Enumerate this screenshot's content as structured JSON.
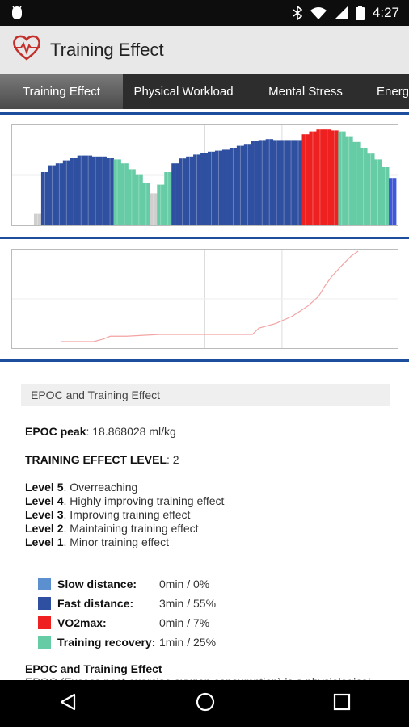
{
  "status": {
    "time": "4:27"
  },
  "app": {
    "title": "Training Effect"
  },
  "tabs": [
    {
      "label": "Training Effect"
    },
    {
      "label": "Physical Workload"
    },
    {
      "label": "Mental Stress"
    },
    {
      "label": "Energy"
    }
  ],
  "section": {
    "header": "EPOC and Training Effect"
  },
  "details": {
    "epoc_label": "EPOC peak",
    "epoc_value": ": 18.868028 ml/kg",
    "te_label": "TRAINING EFFECT LEVEL",
    "te_value": ": 2",
    "levels": [
      {
        "label": "Level 5",
        "text": ". Overreaching"
      },
      {
        "label": "Level 4",
        "text": ". Highly improving training effect"
      },
      {
        "label": "Level 3",
        "text": ". Improving training effect"
      },
      {
        "label": "Level 2",
        "text": ". Maintaining training effect"
      },
      {
        "label": "Level 1",
        "text": ". Minor training effect"
      }
    ],
    "legend": [
      {
        "label": "Slow distance:",
        "value": "0min / 0%",
        "color": "#5b8fd0"
      },
      {
        "label": "Fast distance:",
        "value": "3min / 55%",
        "color": "#2f4fa0"
      },
      {
        "label": "VO2max:",
        "value": "0min / 7%",
        "color": "#ee2020"
      },
      {
        "label": "Training recovery:",
        "value": "1min / 25%",
        "color": "#66cca6"
      }
    ],
    "footer_title": "EPOC and Training Effect",
    "footer_text": "EPOC (Excess post-exercise oxygen consumption) is a physiological"
  },
  "chart_data": [
    {
      "type": "bar",
      "x": [
        0,
        2,
        4,
        6,
        8,
        10,
        12,
        14,
        16,
        18,
        20,
        22,
        24,
        26,
        28,
        30,
        32,
        34,
        36,
        38,
        40,
        42,
        44,
        46,
        48,
        50,
        52,
        54,
        56,
        58,
        60,
        62,
        64,
        66,
        68,
        70,
        72,
        74,
        76,
        78,
        80,
        82,
        84,
        86,
        88,
        90,
        92,
        94,
        96,
        98,
        100
      ],
      "values": [
        0,
        12,
        55,
        62,
        64,
        67,
        70,
        72,
        72,
        71,
        71,
        70,
        68,
        64,
        58,
        52,
        44,
        33,
        42,
        55,
        64,
        69,
        71,
        73,
        75,
        76,
        77,
        78,
        80,
        82,
        84,
        87,
        88,
        89,
        88,
        88,
        88,
        88,
        94,
        97,
        99,
        99,
        98,
        97,
        92,
        86,
        80,
        74,
        68,
        60,
        49
      ],
      "zones": [
        "gray",
        "gray",
        "fast",
        "fast",
        "fast",
        "fast",
        "fast",
        "fast",
        "fast",
        "fast",
        "fast",
        "fast",
        "recovery",
        "recovery",
        "recovery",
        "recovery",
        "recovery",
        "gray",
        "recovery",
        "recovery",
        "fast",
        "fast",
        "fast",
        "fast",
        "fast",
        "fast",
        "fast",
        "fast",
        "fast",
        "fast",
        "fast",
        "fast",
        "fast",
        "fast",
        "fast",
        "fast",
        "fast",
        "fast",
        "vo2max",
        "vo2max",
        "vo2max",
        "vo2max",
        "vo2max",
        "recovery",
        "recovery",
        "recovery",
        "recovery",
        "recovery",
        "recovery",
        "recovery",
        "slow"
      ],
      "ylim": [
        0,
        100
      ],
      "grid": true
    },
    {
      "type": "line",
      "x": [
        0,
        5,
        10,
        13,
        15,
        20,
        25,
        30,
        40,
        50,
        55,
        58,
        60,
        63,
        65,
        70,
        73,
        75,
        78,
        80,
        82,
        85,
        88,
        90
      ],
      "values": [
        0,
        0,
        0,
        3,
        6,
        6,
        7,
        8,
        8,
        8,
        8,
        8,
        15,
        18,
        20,
        28,
        35,
        40,
        50,
        62,
        72,
        84,
        95,
        100
      ],
      "ylim": [
        0,
        100
      ],
      "grid": true,
      "color": "#f4a3a3"
    }
  ]
}
